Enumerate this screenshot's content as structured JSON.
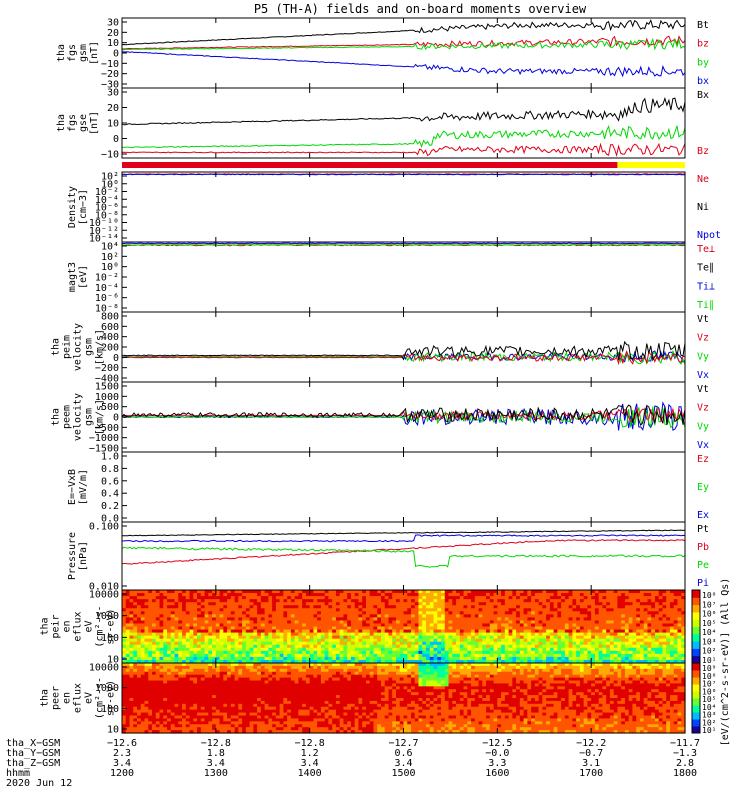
{
  "title": "P5 (TH-A) fields and on-board moments overview",
  "colors": {
    "black": "#000000",
    "red": "#e0001a",
    "green": "#00d800",
    "blue": "#0000e0",
    "yellow": "#ffff00"
  },
  "chart_data": [
    {
      "type": "line",
      "id": "fgs-gsm",
      "ylabel": [
        "tha",
        "fgs",
        "gsm",
        "[nT]"
      ],
      "yticks": [
        "30",
        "20",
        "10",
        "0",
        "−10",
        "−20",
        "−30"
      ],
      "legend": [
        {
          "name": "Bt",
          "color": "black"
        },
        {
          "name": "bz",
          "color": "red"
        },
        {
          "name": "by",
          "color": "green"
        },
        {
          "name": "bx",
          "color": "blue"
        }
      ]
    },
    {
      "type": "line",
      "id": "fgs-gse",
      "ylabel": [
        "tha",
        "fgs",
        "gse",
        "[nT]"
      ],
      "yticks": [
        "30",
        "20",
        "10",
        "0",
        "−10"
      ],
      "legend": [
        {
          "name": "Bx",
          "color": "black"
        },
        {
          "name": "Bz",
          "color": "red"
        }
      ]
    },
    {
      "type": "line",
      "id": "density",
      "ylabel": [
        "Density",
        "[cm−3]"
      ],
      "yticks": [
        "10²",
        "10⁰",
        "10⁻²",
        "10⁻⁴",
        "10⁻⁶",
        "10⁻⁸",
        "10⁻¹⁰",
        "10⁻¹²",
        "10⁻¹⁴"
      ],
      "legend": [
        {
          "name": "Ne",
          "color": "red"
        },
        {
          "name": "Ni",
          "color": "black"
        },
        {
          "name": "Npot",
          "color": "blue"
        }
      ]
    },
    {
      "type": "line",
      "id": "temperature",
      "ylabel": [
        "magt3",
        "[eV]"
      ],
      "yticks": [
        "10⁴",
        "10²",
        "10⁰",
        "10⁻²",
        "10⁻⁴",
        "10⁻⁶",
        "10⁻⁸"
      ],
      "legend": [
        {
          "name": "Te⊥",
          "color": "red"
        },
        {
          "name": "Te∥",
          "color": "black"
        },
        {
          "name": "Ti⊥",
          "color": "blue"
        },
        {
          "name": "Ti∥",
          "color": "green"
        }
      ]
    },
    {
      "type": "line",
      "id": "peim-velocity",
      "ylabel": [
        "tha",
        "peim",
        "velocity",
        "gsm",
        "[km/s]"
      ],
      "yticks": [
        "800",
        "600",
        "400",
        "200",
        "0",
        "−200",
        "−400"
      ],
      "legend": [
        {
          "name": "Vt",
          "color": "black"
        },
        {
          "name": "Vz",
          "color": "red"
        },
        {
          "name": "Vy",
          "color": "green"
        },
        {
          "name": "Vx",
          "color": "blue"
        }
      ]
    },
    {
      "type": "line",
      "id": "peem-velocity",
      "ylabel": [
        "tha",
        "peem",
        "velocity",
        "gsm",
        "[km/s]"
      ],
      "yticks": [
        "1500",
        "1000",
        "500",
        "0",
        "−500",
        "−1000",
        "−1500"
      ],
      "legend": [
        {
          "name": "Vt",
          "color": "black"
        },
        {
          "name": "Vz",
          "color": "red"
        },
        {
          "name": "Vy",
          "color": "green"
        },
        {
          "name": "Vx",
          "color": "blue"
        }
      ]
    },
    {
      "type": "line",
      "id": "e-field",
      "ylabel": [
        "E=−VxB",
        "[mV/m]"
      ],
      "yticks": [
        "1.0",
        "0.8",
        "0.6",
        "0.4",
        "0.2",
        "0.0"
      ],
      "legend": [
        {
          "name": "Ez",
          "color": "red"
        },
        {
          "name": "Ey",
          "color": "green"
        },
        {
          "name": "Ex",
          "color": "blue"
        }
      ]
    },
    {
      "type": "line",
      "id": "pressure",
      "ylabel": [
        "Pressure",
        "[nPa]"
      ],
      "yticks": [
        "0.100",
        "0.010"
      ],
      "legend": [
        {
          "name": "Pt",
          "color": "black"
        },
        {
          "name": "Pb",
          "color": "red"
        },
        {
          "name": "Pe",
          "color": "green"
        },
        {
          "name": "Pi",
          "color": "blue"
        }
      ]
    },
    {
      "type": "heatmap",
      "id": "peir-spectrogram",
      "ylabel": [
        "tha",
        "peir",
        "en",
        "eflux",
        "eV",
        "(cm²-s-",
        "sr-eV)"
      ],
      "yticks": [
        "10000",
        "1000",
        "100",
        "10"
      ],
      "colorbar": [
        "10⁸",
        "10⁷",
        "10⁶",
        "10⁵",
        "10⁴",
        "10³",
        "10²",
        "10¹"
      ]
    },
    {
      "type": "heatmap",
      "id": "peer-spectrogram",
      "ylabel": [
        "tha",
        "peer",
        "en",
        "eflux",
        "eV",
        "(cm²-s-",
        "sr-eV)"
      ],
      "yticks": [
        "10000",
        "1000",
        "100",
        "10"
      ],
      "colorbar": [
        "10⁹",
        "10⁸",
        "10⁷",
        "10⁶",
        "10⁵",
        "10⁴",
        "10³",
        "10²",
        "10¹"
      ]
    }
  ],
  "colorbar_label": "[eV/(cm^2-s-sr-eV)] (All Qs)",
  "x_axis": {
    "rows": [
      {
        "label": "tha_X−GSM",
        "values": [
          "−12.6",
          "−12.8",
          "−12.8",
          "−12.7",
          "−12.5",
          "−12.2",
          "−11.7"
        ]
      },
      {
        "label": "tha_Y−GSM",
        "values": [
          "2.3",
          "1.8",
          "1.2",
          "0.6",
          "−0.0",
          "−0.7",
          "−1.3"
        ]
      },
      {
        "label": "tha_Z−GSM",
        "values": [
          "3.4",
          "3.4",
          "3.4",
          "3.4",
          "3.3",
          "3.1",
          "2.8"
        ]
      },
      {
        "label": "hhmm",
        "values": [
          "1200",
          "1300",
          "1400",
          "1500",
          "1600",
          "1700",
          "1800"
        ]
      }
    ],
    "date": "2020 Jun 12"
  }
}
